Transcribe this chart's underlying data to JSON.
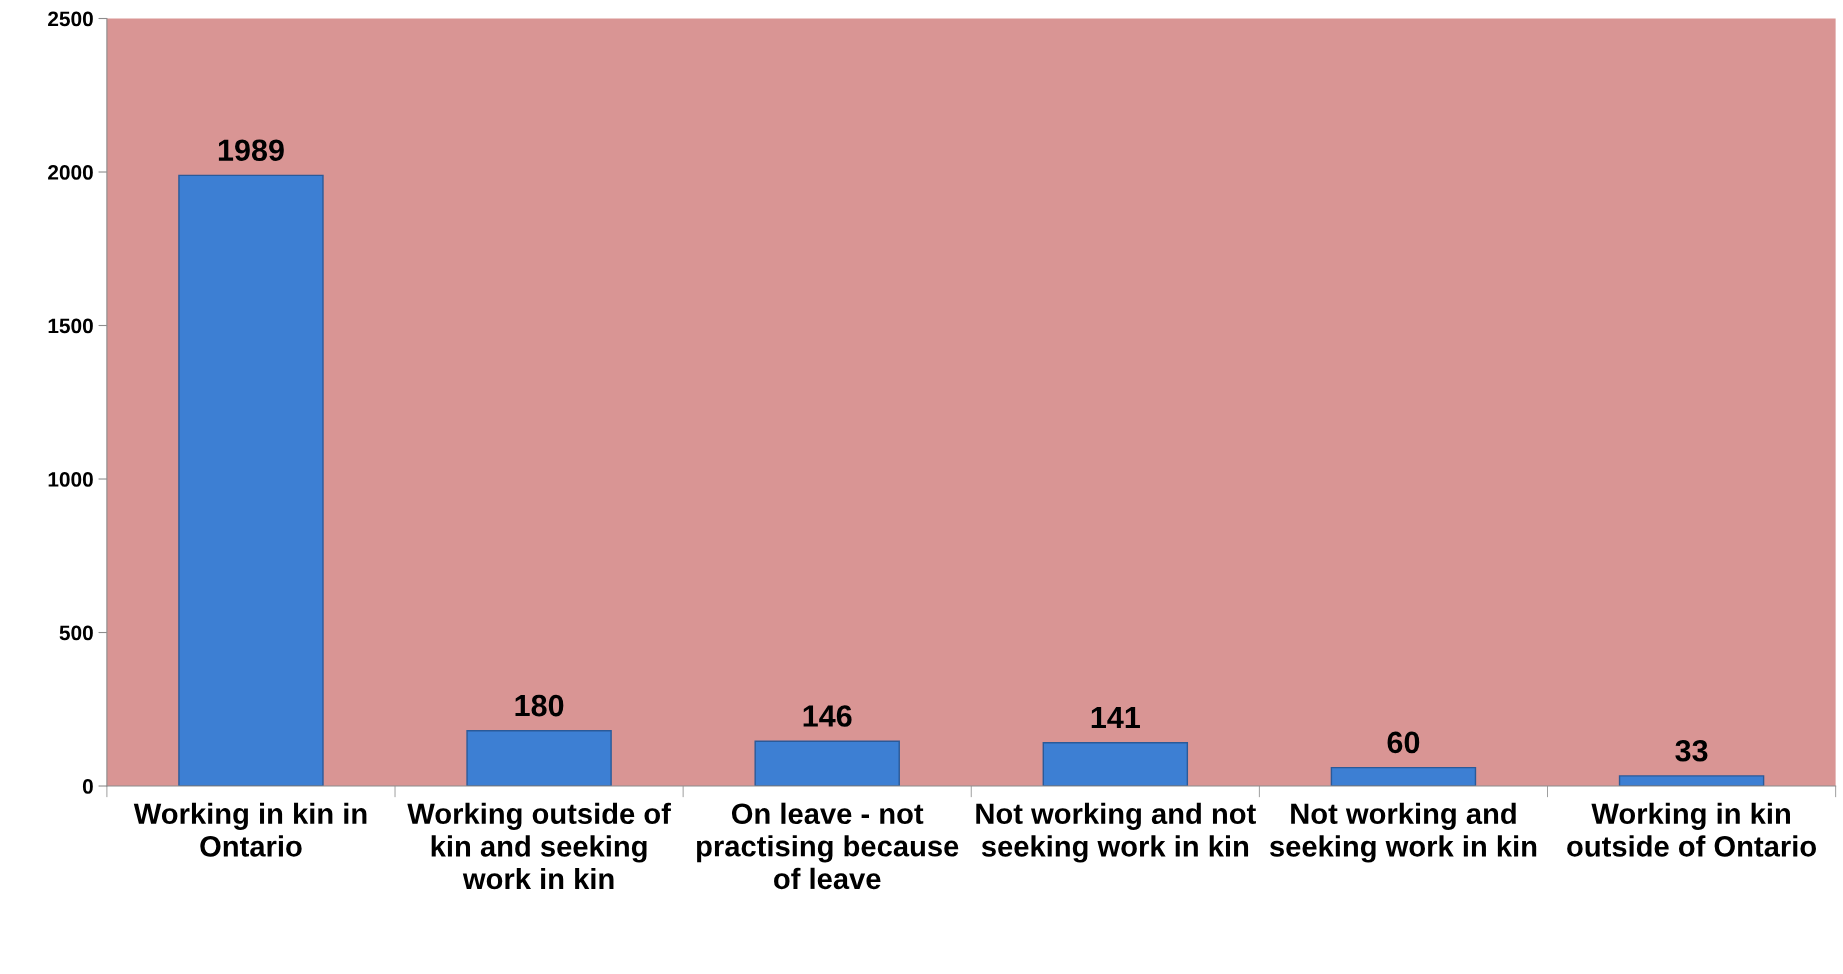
{
  "chart_data": {
    "type": "bar",
    "categories": [
      "Working in kin in Ontario",
      "Working outside of kin and seeking work in kin",
      "On leave - not practising because of leave",
      "Not working and not seeking work in kin",
      "Not working and seeking work in kin",
      "Working in kin outside of Ontario"
    ],
    "values": [
      1989,
      180,
      146,
      141,
      60,
      33
    ],
    "color": "#3d7fd3",
    "data_labels": true,
    "ylim": [
      0,
      2500
    ],
    "yticks": [
      0,
      500,
      1000,
      1500,
      2000,
      2500
    ],
    "grid": false,
    "legend": false
  }
}
